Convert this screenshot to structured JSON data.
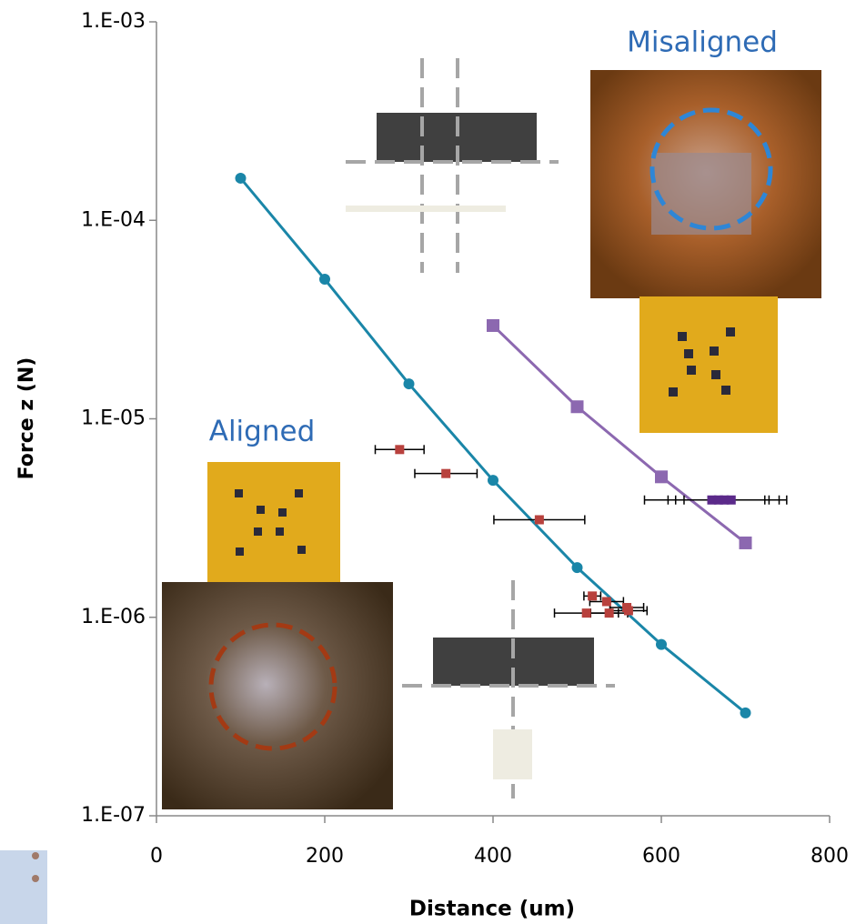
{
  "chart_data": {
    "type": "scatter",
    "x_label": "Distance (um)",
    "y_label": "Force z (N)",
    "annotations": [
      "Misaligned",
      "Aligned"
    ],
    "xlim": [
      0,
      800
    ],
    "xticks": [
      0,
      200,
      400,
      600,
      800
    ],
    "ylim": [
      1e-07,
      0.001
    ],
    "ylog": true,
    "yticks": [
      {
        "value": 1e-07,
        "label": "1.E-07"
      },
      {
        "value": 1e-06,
        "label": "1.E-06"
      },
      {
        "value": 1e-05,
        "label": "1.E-05"
      },
      {
        "value": 0.0001,
        "label": "1.E-04"
      },
      {
        "value": 0.001,
        "label": "1.E-03"
      }
    ],
    "series": [
      {
        "color": "#1a86a8",
        "marker": "circle",
        "line": true,
        "x": [
          100,
          200,
          300,
          400,
          500,
          600,
          700
        ],
        "values": [
          0.000163,
          5.05e-05,
          1.5e-05,
          4.9e-06,
          1.78e-06,
          7.3e-07,
          3.3e-07
        ]
      },
      {
        "color": "#8c68b0",
        "marker": "square",
        "line": true,
        "x": [
          400,
          500,
          600,
          700
        ],
        "values": [
          2.95e-05,
          1.15e-05,
          5.1e-06,
          2.37e-06
        ]
      },
      {
        "color": "#b8413d",
        "marker": "square",
        "line": false,
        "x": [
          289,
          344,
          455,
          518,
          535,
          559,
          511,
          538,
          561
        ],
        "values": [
          7e-06,
          5.3e-06,
          3.1e-06,
          1.28e-06,
          1.2e-06,
          1.12e-06,
          1.05e-06,
          1.05e-06,
          1.08e-06
        ],
        "xerr": [
          29,
          37,
          54,
          10,
          20,
          20,
          38,
          22,
          22
        ]
      },
      {
        "color": "#5b2a8a",
        "marker": "square",
        "line": false,
        "x": [
          660,
          668,
          675,
          683
        ],
        "values": [
          3.9e-06,
          3.9e-06,
          3.9e-06,
          3.9e-06
        ],
        "xerr": [
          80,
          60,
          48,
          66
        ]
      }
    ]
  }
}
